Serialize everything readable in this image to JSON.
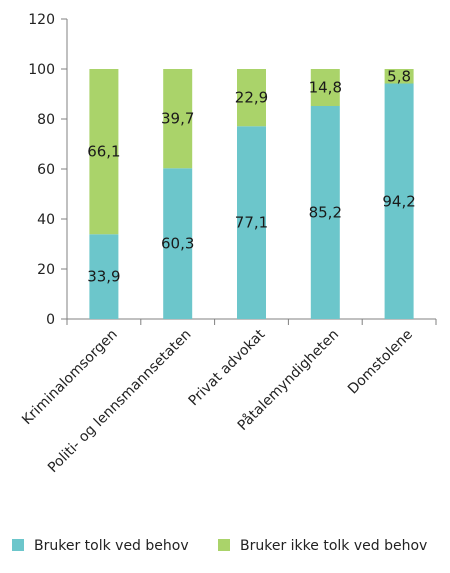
{
  "chart_data": {
    "type": "bar",
    "stacked": true,
    "categories": [
      "Kriminalomsorgen",
      "Politi- og lennsmannsetaten",
      "Privat advokat",
      "Påtalemyndigheten",
      "Domstolene"
    ],
    "series": [
      {
        "name": "Bruker tolk ved behov",
        "values": [
          33.9,
          60.3,
          77.1,
          85.2,
          94.2
        ],
        "labels": [
          "33,9",
          "60,3",
          "77,1",
          "85,2",
          "94,2"
        ],
        "color": "#6cc6cb"
      },
      {
        "name": "Bruker ikke tolk ved behov",
        "values": [
          66.1,
          39.7,
          22.9,
          14.8,
          5.8
        ],
        "labels": [
          "66,1",
          "39,7",
          "22,9",
          "14,8",
          "5,8"
        ],
        "color": "#aad36a"
      }
    ],
    "ylim": [
      0,
      120
    ],
    "yticks": [
      0,
      20,
      40,
      60,
      80,
      100,
      120
    ],
    "title": "",
    "xlabel": "",
    "ylabel": "",
    "grid": false,
    "legend_position": "bottom"
  },
  "colors": {
    "axis": "#808080"
  }
}
